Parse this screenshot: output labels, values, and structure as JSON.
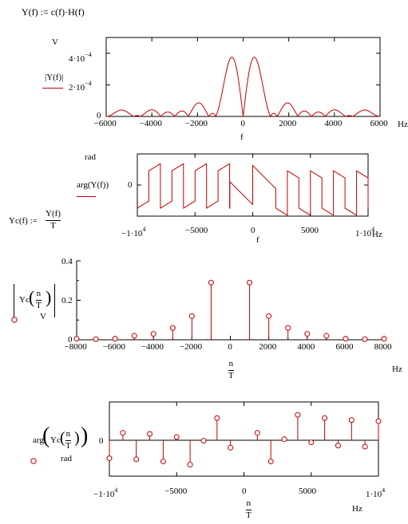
{
  "equations": {
    "y_def": "Y(f) := c(f)·H(f)",
    "yc_def_lhs": "Yc(f) :=",
    "yc_def_num": "Y(f)",
    "yc_def_den": "T"
  },
  "plot1": {
    "y_unit": "V",
    "ylabel": "|Y(f)|",
    "ytick_top": "4·10",
    "ytick_top_exp": "−4",
    "ytick_mid": "2·10",
    "ytick_mid_exp": "−4",
    "ytick_zero": "0",
    "xticks": [
      "−6000",
      "−4000",
      "−2000",
      "0",
      "2000",
      "4000",
      "6000"
    ],
    "xlabel": "f",
    "xunit": "Hz"
  },
  "plot2": {
    "y_unit": "rad",
    "ylabel": "arg(Y(f))",
    "ytick_zero": "0",
    "xtick_left": "−1·10",
    "xtick_left_exp": "4",
    "xtick_m5000": "−5000",
    "xtick_0": "0",
    "xtick_5000": "5000",
    "xtick_right": "1·10",
    "xtick_right_exp": "4",
    "xlabel": "f",
    "xunit": "Hz"
  },
  "plot3": {
    "ylabel_pre": "Yc",
    "ylabel_num": "n",
    "ylabel_den": "T",
    "y_unit": "V",
    "yticks": [
      "0.4",
      "0.2",
      "0"
    ],
    "xticks": [
      "−8000",
      "−6000",
      "−4000",
      "−2000",
      "0",
      "2000",
      "4000",
      "6000",
      "8000"
    ],
    "xlabel_num": "n",
    "xlabel_den": "T",
    "xunit": "Hz"
  },
  "plot4": {
    "ylabel_pre": "arg",
    "ylabel_inner": "Yc",
    "ylabel_num": "n",
    "ylabel_den": "T",
    "y_unit": "rad",
    "ytick_zero": "0",
    "xtick_left": "−1·10",
    "xtick_left_exp": "4",
    "xtick_m5000": "−5000",
    "xtick_0": "0",
    "xtick_5000": "5000",
    "xtick_right": "1·10",
    "xtick_right_exp": "4",
    "xlabel_num": "n",
    "xlabel_den": "T",
    "xunit": "Hz"
  },
  "colors": {
    "trace": "#c00000",
    "axis": "#000000"
  },
  "chart_data": [
    {
      "type": "line",
      "ylabel": "|Y(f)|",
      "xlabel": "f",
      "xlim": [
        -6000,
        6000
      ],
      "ylim": [
        0,
        0.0005
      ],
      "x": [
        -6000,
        -5500,
        -5000,
        -4500,
        -4000,
        -3500,
        -3000,
        -2500,
        -2000,
        -1500,
        -1000,
        -600,
        -300,
        0,
        300,
        600,
        1000,
        1500,
        2000,
        2500,
        3000,
        3500,
        4000,
        4500,
        5000,
        5500,
        6000
      ],
      "values": [
        1e-05,
        2e-05,
        2e-05,
        1e-05,
        5e-06,
        4e-05,
        4e-05,
        8e-05,
        7e-05,
        2e-05,
        0.0002,
        0.00041,
        0.00025,
        0,
        0.00025,
        0.00041,
        0.0002,
        2e-05,
        7e-05,
        8e-05,
        4e-05,
        4e-05,
        5e-06,
        1e-05,
        2e-05,
        2e-05,
        1e-05
      ]
    },
    {
      "type": "line",
      "ylabel": "arg(Y(f))",
      "xlabel": "f",
      "xlim": [
        -10000,
        10000
      ],
      "ylim": [
        -3.5,
        3.5
      ],
      "x": [
        -10000,
        -9000,
        -8000,
        -7000,
        -6000,
        -5000,
        -4000,
        -3000,
        -2000,
        -1000,
        0,
        1000,
        2000,
        3000,
        4000,
        5000,
        6000,
        7000,
        8000,
        9000,
        10000
      ],
      "values": [
        -3,
        2,
        -3,
        2,
        -3,
        2,
        -3,
        -1,
        3,
        1,
        0,
        -1,
        -3,
        1,
        3,
        -2,
        3,
        -2,
        3,
        -2,
        3
      ]
    },
    {
      "type": "scatter",
      "ylabel": "Yc(n/T)",
      "xlabel": "n/T",
      "xlim": [
        -8000,
        8000
      ],
      "ylim": [
        0,
        0.4
      ],
      "x": [
        -8000,
        -7000,
        -6000,
        -5000,
        -4000,
        -3000,
        -2000,
        -1000,
        1000,
        2000,
        3000,
        4000,
        5000,
        6000,
        7000,
        8000
      ],
      "values": [
        0.005,
        0.003,
        0.005,
        0.02,
        0.03,
        0.06,
        0.12,
        0.29,
        0.29,
        0.12,
        0.06,
        0.03,
        0.02,
        0.005,
        0.003,
        0.005
      ]
    },
    {
      "type": "scatter",
      "ylabel": "arg(Yc(n/T))",
      "xlabel": "n/T",
      "xlim": [
        -10000,
        10000
      ],
      "ylim": [
        -3.5,
        3.5
      ],
      "x": [
        -10000,
        -9000,
        -8000,
        -7000,
        -6000,
        -5000,
        -4000,
        -3000,
        -2000,
        -1000,
        1000,
        2000,
        3000,
        4000,
        5000,
        6000,
        7000,
        8000,
        9000,
        10000
      ],
      "values": [
        -1.7,
        0.7,
        -1.8,
        0.6,
        -2.0,
        0.3,
        -2.3,
        -0.05,
        2.1,
        -0.7,
        0.7,
        -2.0,
        0.1,
        2.4,
        -0.2,
        2.1,
        -0.5,
        1.9,
        -0.6,
        1.8
      ]
    }
  ]
}
